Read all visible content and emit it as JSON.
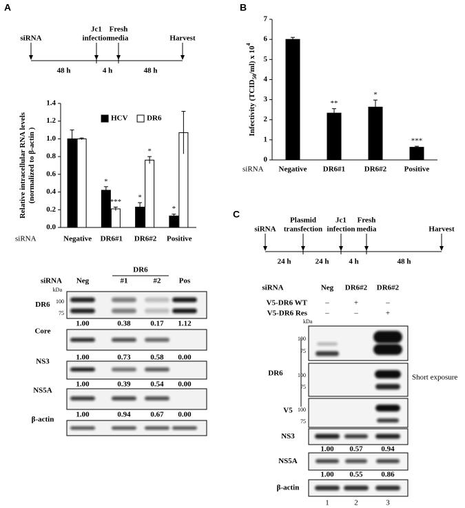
{
  "panels": [
    "A",
    "B",
    "C"
  ],
  "chart_data": [
    {
      "type": "bar",
      "ylabel": [
        "Relative intracellular RNA levels",
        "(normalized to β-actin )"
      ],
      "xlabel": "siRNA",
      "categories": [
        "Negative",
        "DR6#1",
        "DR6#2",
        "Positive"
      ],
      "series": [
        {
          "name": "HCV",
          "color": "#000000",
          "values": [
            1.0,
            0.42,
            0.23,
            0.13
          ],
          "errors": [
            0.1,
            0.04,
            0.05,
            0.02
          ],
          "annotations": [
            null,
            "*",
            "*",
            "*"
          ]
        },
        {
          "name": "DR6",
          "color": "#ffffff",
          "values": [
            1.0,
            0.21,
            0.76,
            1.07
          ],
          "errors": [
            0.01,
            0.02,
            0.04,
            0.24
          ],
          "annotations": [
            null,
            "***",
            "*",
            null
          ]
        }
      ],
      "ylim": [
        0,
        1.4
      ],
      "yticks": [
        {
          "value": 0,
          "label": "0.0"
        },
        0.2,
        0.4,
        0.6,
        0.8,
        {
          "value": 1,
          "label": "1.0"
        },
        1.2,
        1.4
      ],
      "legend": "top-right"
    },
    {
      "type": "bar",
      "ylabel_parts": [
        "Infectivity (TCID",
        "50",
        "/ml) x 10",
        "4"
      ],
      "xlabel": "siRNA",
      "categories": [
        "Negative",
        "DR6#1",
        "DR6#2",
        "Positive"
      ],
      "color": "#000000",
      "values": [
        6.0,
        2.33,
        2.63,
        0.63
      ],
      "errors": [
        0.1,
        0.22,
        0.35,
        0.05
      ],
      "annotations": [
        null,
        "**",
        "*",
        "***"
      ],
      "ylim": [
        0,
        7
      ],
      "yticks": [
        0,
        1,
        2,
        3,
        4,
        5,
        6,
        7
      ]
    }
  ],
  "timeline_A": {
    "events": [
      [
        "siRNA"
      ],
      [
        "Jc1",
        "infection"
      ],
      [
        "Fresh",
        "media"
      ],
      [
        "Harvest"
      ]
    ],
    "intervals": [
      "48 h",
      "4 h",
      "48 h"
    ]
  },
  "timeline_C": {
    "events": [
      [
        "siRNA"
      ],
      [
        "Plasmid",
        "transfection"
      ],
      [
        "Jc1",
        "infection"
      ],
      [
        "Fresh",
        "media"
      ],
      [
        "Harvest"
      ]
    ],
    "intervals": [
      "24 h",
      "24 h",
      "4 h",
      "48 h"
    ]
  },
  "blot_A": {
    "header": "siRNA",
    "kda": "kDa",
    "group": "DR6",
    "lanes": [
      "Neg",
      "#1",
      "#2",
      "Pos"
    ],
    "rows": [
      {
        "label": "DR6",
        "markers": [
          "100",
          "75"
        ],
        "quant": [
          "1.00",
          "0.38",
          "0.17",
          "1.12"
        ]
      },
      {
        "label": "Core",
        "quant": [
          "1.00",
          "0.73",
          "0.58",
          "0.00"
        ]
      },
      {
        "label": "NS3",
        "quant": [
          "1.00",
          "0.39",
          "0.54",
          "0.00"
        ]
      },
      {
        "label": "NS5A",
        "quant": [
          "1.00",
          "0.94",
          "0.67",
          "0.00"
        ]
      },
      {
        "label": "β-actin"
      }
    ]
  },
  "blot_C": {
    "header": "siRNA",
    "lanes": [
      "Neg",
      "DR6#2",
      "DR6#2"
    ],
    "conditions": [
      {
        "label": "V5-DR6 WT",
        "signs": [
          "–",
          "+",
          "–"
        ]
      },
      {
        "label": "V5-DR6 Res",
        "signs": [
          "–",
          "–",
          "+"
        ]
      }
    ],
    "kda": "kDa",
    "group": "DR6",
    "note": "Short exposure",
    "rows": [
      {
        "markers": [
          "100",
          "75"
        ]
      },
      {
        "markers": [
          "100",
          "75"
        ]
      },
      {
        "label": "V5",
        "markers": [
          "100",
          "75"
        ]
      },
      {
        "label": "NS3",
        "quant": [
          "1.00",
          "0.57",
          "0.94"
        ]
      },
      {
        "label": "NS5A",
        "quant": [
          "1.00",
          "0.55",
          "0.86"
        ]
      },
      {
        "label": "β-actin"
      }
    ],
    "lane_numbers": [
      "1",
      "2",
      "3"
    ]
  }
}
